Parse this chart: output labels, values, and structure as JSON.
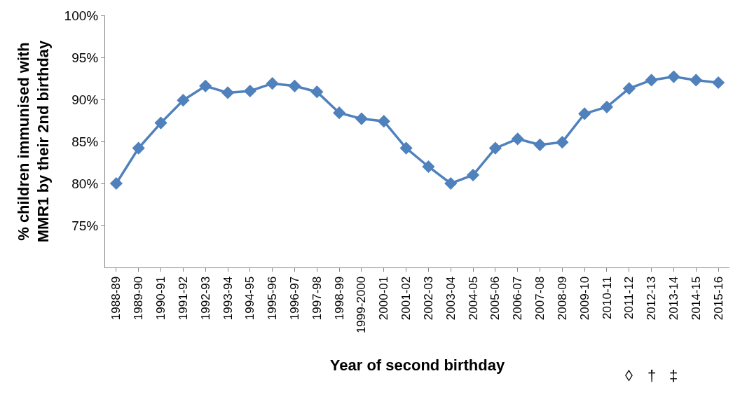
{
  "chart_data": {
    "type": "line",
    "xlabel": "Year of second birthday",
    "ylabel": "% children immunised with MMR1 by their 2nd birthday",
    "categories": [
      "1988-89",
      "1989-90",
      "1990-91",
      "1991-92",
      "1992-93",
      "1993-94",
      "1994-95",
      "1995-96",
      "1996-97",
      "1997-98",
      "1998-99",
      "1999-2000",
      "2000-01",
      "2001-02",
      "2002-03",
      "2003-04",
      "2004-05",
      "2005-06",
      "2006-07",
      "2007-08",
      "2008-09",
      "2009-10",
      "2010-11",
      "2011-12",
      "2012-13",
      "2013-14",
      "2014-15",
      "2015-16"
    ],
    "series": [
      {
        "color": "#4f81bd",
        "values": [
          80.0,
          84.2,
          87.2,
          89.9,
          91.6,
          90.8,
          91.0,
          91.9,
          91.6,
          90.9,
          88.4,
          87.7,
          87.4,
          84.2,
          82.0,
          80.0,
          81.0,
          84.2,
          85.3,
          84.6,
          84.9,
          88.3,
          89.1,
          91.3,
          92.3,
          92.7,
          92.3,
          92.0
        ]
      }
    ],
    "ylim": [
      70,
      100
    ],
    "yticks": [
      {
        "value": 75,
        "label": "75%"
      },
      {
        "value": 80,
        "label": "80%"
      },
      {
        "value": 85,
        "label": "85%"
      },
      {
        "value": 90,
        "label": "90%"
      },
      {
        "value": 95,
        "label": "95%"
      },
      {
        "value": 100,
        "label": "100%"
      }
    ],
    "marker": "diamond",
    "line_style": "solid",
    "annotations": [
      "◊",
      "†",
      "‡"
    ]
  }
}
